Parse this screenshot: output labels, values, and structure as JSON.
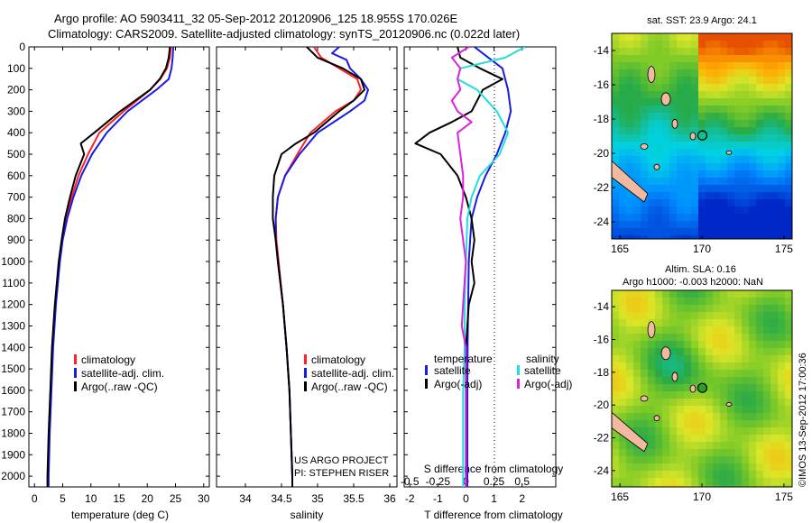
{
  "figure": {
    "title_line1": "Argo profile: AO 5903411_32 05-Sep-2012 20120906_125 18.955S 170.026E",
    "title_line2": "Climatology: CARS2009. Satellite-adjusted climatology: synTS_20120906.nc (0.022d later)",
    "credit_line1": "US ARGO PROJECT",
    "credit_line2": "PI: STEPHEN RISER",
    "footer_vertical": "©IMOS 13-Sep-2012 17:00:36"
  },
  "colors": {
    "climatology": "#ff2222",
    "satellite": "#1a1ae6",
    "argo": "#000000",
    "salinity_satellite": "#22dddd",
    "salinity_argo": "#dd22dd"
  },
  "chart_data": [
    {
      "id": "temperature",
      "type": "line",
      "xlabel": "temperature (deg C)",
      "ylim": [
        2050,
        0
      ],
      "xlim": [
        -1,
        31
      ],
      "yticks": [
        0,
        100,
        200,
        300,
        400,
        500,
        600,
        700,
        800,
        900,
        1000,
        1100,
        1200,
        1300,
        1400,
        1500,
        1600,
        1700,
        1800,
        1900,
        2000
      ],
      "xticks": [
        0,
        5,
        10,
        15,
        20,
        25,
        30
      ],
      "legend": [
        "climatology",
        "satellite-adj. clim.",
        "Argo(..raw -QC)"
      ],
      "legend_placement": "lower-center",
      "series": [
        {
          "name": "climatology",
          "color_key": "climatology",
          "depth": [
            0,
            50,
            100,
            150,
            200,
            300,
            400,
            500,
            600,
            700,
            800,
            900,
            1000,
            1200,
            1400,
            1600,
            1800,
            2000,
            2050
          ],
          "values": [
            24.2,
            24,
            23.5,
            22.3,
            20.5,
            15.8,
            11.5,
            9.5,
            7.8,
            6.6,
            5.6,
            4.9,
            4.4,
            3.7,
            3.2,
            2.9,
            2.6,
            2.4,
            2.4
          ]
        },
        {
          "name": "satellite-adj. clim.",
          "color_key": "satellite",
          "depth": [
            0,
            50,
            100,
            150,
            200,
            300,
            400,
            500,
            600,
            700,
            800,
            900,
            1000,
            1200,
            1400,
            1600,
            1800,
            2000,
            2050
          ],
          "values": [
            24.6,
            24.5,
            24.3,
            23.8,
            21.6,
            16.5,
            12.8,
            10.2,
            8.3,
            6.9,
            5.8,
            5.0,
            4.5,
            3.8,
            3.3,
            3.0,
            2.7,
            2.5,
            2.5
          ]
        },
        {
          "name": "Argo(..raw -QC)",
          "color_key": "argo",
          "depth": [
            0,
            50,
            100,
            150,
            200,
            300,
            400,
            450,
            500,
            600,
            700,
            800,
            900,
            1000,
            1200,
            1400,
            1600,
            1800,
            2000,
            2050
          ],
          "values": [
            24.0,
            23.8,
            23.3,
            22.2,
            20.5,
            15.2,
            10.6,
            8.2,
            8.8,
            7.3,
            6.3,
            5.4,
            4.8,
            4.3,
            3.6,
            3.1,
            2.8,
            2.5,
            2.3,
            2.3
          ]
        }
      ]
    },
    {
      "id": "salinity",
      "type": "line",
      "xlabel": "salinity",
      "ylim": [
        2050,
        0
      ],
      "xlim": [
        33.6,
        36.1
      ],
      "xticks": [
        34,
        34.5,
        35,
        35.5,
        36
      ],
      "legend": [
        "climatology",
        "satellite-adj. clim.",
        "Argo(..raw -QC)"
      ],
      "legend_placement": "lower-center",
      "series": [
        {
          "name": "climatology",
          "color_key": "climatology",
          "depth": [
            0,
            50,
            100,
            150,
            200,
            250,
            300,
            400,
            500,
            600,
            700,
            800,
            900,
            1000,
            1200,
            1400,
            1600,
            1800,
            2000,
            2050
          ],
          "values": [
            34.95,
            35.05,
            35.3,
            35.55,
            35.6,
            35.5,
            35.25,
            34.9,
            34.72,
            34.55,
            34.45,
            34.42,
            34.43,
            34.46,
            34.52,
            34.57,
            34.61,
            34.63,
            34.65,
            34.65
          ]
        },
        {
          "name": "satellite-adj. clim.",
          "color_key": "satellite",
          "depth": [
            0,
            30,
            60,
            100,
            150,
            200,
            250,
            300,
            400,
            500,
            600,
            700,
            800,
            900,
            1000,
            1200,
            1400,
            1600,
            1800,
            2000,
            2050
          ],
          "values": [
            35.3,
            35.2,
            35.4,
            35.45,
            35.6,
            35.7,
            35.65,
            35.45,
            35.0,
            34.75,
            34.55,
            34.45,
            34.42,
            34.42,
            34.45,
            34.52,
            34.57,
            34.61,
            34.63,
            34.65,
            34.65
          ]
        },
        {
          "name": "Argo(..raw -QC)",
          "color_key": "argo",
          "depth": [
            0,
            50,
            100,
            150,
            200,
            250,
            300,
            400,
            450,
            500,
            600,
            700,
            800,
            900,
            1000,
            1200,
            1400,
            1600,
            1800,
            2000,
            2050
          ],
          "values": [
            34.85,
            35.0,
            35.35,
            35.6,
            35.65,
            35.5,
            35.3,
            34.95,
            34.7,
            34.5,
            34.4,
            34.38,
            34.38,
            34.42,
            34.45,
            34.52,
            34.57,
            34.61,
            34.63,
            34.65,
            34.65
          ]
        }
      ]
    },
    {
      "id": "differences",
      "type": "line",
      "xlabel": "T difference from climatology",
      "xlabel_top": "S difference from climatology",
      "ylim": [
        2050,
        0
      ],
      "xlim": [
        -2.2,
        3.2
      ],
      "xticks": [
        -2,
        -1,
        0,
        1,
        2
      ],
      "xticks_s": [
        -0.5,
        -0.25,
        0,
        0.25,
        0.5
      ],
      "legend_headers": [
        "temperature",
        "salinity"
      ],
      "legend": [
        "satellite",
        "Argo(-adj)",
        "satellite",
        "Argo(-adj)"
      ],
      "legend_placement": "lower-center",
      "series": [
        {
          "name": "temperature satellite",
          "color_key": "satellite",
          "depth": [
            0,
            50,
            100,
            150,
            200,
            300,
            400,
            500,
            600,
            700,
            800,
            900,
            1000,
            1200,
            1400,
            1600,
            1800,
            2000,
            2050
          ],
          "values": [
            0.3,
            0.8,
            1.3,
            1.4,
            1.5,
            1.6,
            1.4,
            1.1,
            0.7,
            0.4,
            0.2,
            0.15,
            0.1,
            0.08,
            0.06,
            0.05,
            0.05,
            0.05,
            0.05
          ]
        },
        {
          "name": "temperature Argo(-adj)",
          "color_key": "argo",
          "depth": [
            0,
            50,
            100,
            150,
            200,
            250,
            300,
            350,
            400,
            450,
            500,
            600,
            700,
            800,
            900,
            1000,
            1100,
            1200,
            1400,
            1600,
            1800,
            2000,
            2050
          ],
          "values": [
            -0.3,
            -0.2,
            0.5,
            1.3,
            0.6,
            0.4,
            0.2,
            -0.5,
            -1.3,
            -1.8,
            -0.9,
            -0.3,
            0.0,
            0.2,
            0.3,
            0.2,
            0.3,
            0.1,
            0.0,
            0.0,
            0.0,
            0.0,
            0.0
          ]
        },
        {
          "name": "salinity satellite",
          "color_key": "salinity_satellite",
          "depth": [
            0,
            50,
            100,
            150,
            200,
            300,
            400,
            500,
            600,
            700,
            800,
            1000,
            1200,
            1400,
            1600,
            1800,
            2000,
            2050
          ],
          "values": [
            2.1,
            1.4,
            -0.2,
            -0.3,
            0.4,
            1.1,
            1.5,
            1.2,
            0.5,
            0.2,
            0.05,
            0.0,
            -0.05,
            -0.05,
            -0.1,
            -0.1,
            -0.1,
            -0.1
          ]
        },
        {
          "name": "salinity Argo(-adj)",
          "color_key": "salinity_argo",
          "depth": [
            0,
            50,
            100,
            150,
            200,
            250,
            300,
            350,
            400,
            500,
            600,
            700,
            800,
            1000,
            1200,
            1300,
            1400,
            1600,
            1800,
            2000,
            2050
          ],
          "values": [
            0.1,
            -0.5,
            -0.2,
            -0.3,
            -0.2,
            -0.5,
            -0.3,
            0.2,
            -0.3,
            -0.2,
            -0.1,
            -0.1,
            -0.2,
            0.0,
            -0.1,
            -0.15,
            0.0,
            0.0,
            0.0,
            0.0,
            0.0
          ]
        }
      ]
    },
    {
      "id": "sst_map",
      "type": "heatmap",
      "title": "sat. SST: 23.9 Argo: 24.1",
      "xticks": [
        165,
        170,
        175
      ],
      "yticks": [
        -14,
        -16,
        -18,
        -20,
        -22,
        -24
      ],
      "xlim": [
        164.5,
        175.5
      ],
      "ylim": [
        -25,
        -13
      ],
      "argo_position": {
        "lon": 170.026,
        "lat": -18.955
      }
    },
    {
      "id": "sla_map",
      "type": "heatmap",
      "title_line1": "Altim. SLA: 0.16",
      "title_line2": "Argo h1000: -0.003 h2000: NaN",
      "xticks": [
        165,
        170,
        175
      ],
      "yticks": [
        -14,
        -16,
        -18,
        -20,
        -22,
        -24
      ],
      "xlim": [
        164.5,
        175.5
      ],
      "ylim": [
        -25,
        -13
      ],
      "argo_position": {
        "lon": 170.026,
        "lat": -18.955
      }
    }
  ]
}
